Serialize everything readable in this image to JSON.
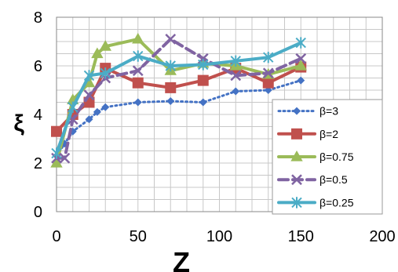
{
  "chart_data": {
    "type": "line",
    "title": "",
    "xlabel": "Z",
    "ylabel": "ξ",
    "xlim": [
      0,
      200
    ],
    "ylim": [
      0,
      8
    ],
    "x_ticks": [
      {
        "value": 0,
        "label": "0"
      },
      {
        "value": 50,
        "label": "50"
      },
      {
        "value": 100,
        "label": "100"
      },
      {
        "value": 150,
        "label": "150"
      },
      {
        "value": 200,
        "label": "200"
      }
    ],
    "y_ticks": [
      {
        "value": 0,
        "label": "0"
      },
      {
        "value": 2,
        "label": "2"
      },
      {
        "value": 4,
        "label": "4"
      },
      {
        "value": 6,
        "label": "6"
      },
      {
        "value": 8,
        "label": "8"
      }
    ],
    "grid": true,
    "legend_position": "bottom-right",
    "series": [
      {
        "name": "β=3",
        "color": "#4472c4",
        "style": "dotted",
        "marker": "diamond",
        "x": [
          0,
          5,
          10,
          20,
          25,
          30,
          50,
          70,
          90,
          110,
          130,
          150
        ],
        "y": [
          2.3,
          2.8,
          3.3,
          3.8,
          4.1,
          4.3,
          4.5,
          4.55,
          4.5,
          4.95,
          5.0,
          5.4
        ]
      },
      {
        "name": "β=2",
        "color": "#c0504d",
        "style": "solid",
        "marker": "square",
        "x": [
          0,
          10,
          20,
          30,
          50,
          70,
          90,
          110,
          130,
          150
        ],
        "y": [
          3.3,
          4.0,
          4.5,
          5.9,
          5.3,
          5.1,
          5.4,
          5.9,
          5.3,
          5.95
        ]
      },
      {
        "name": "β=0.75",
        "color": "#9bbb59",
        "style": "solid",
        "marker": "triangle",
        "x": [
          0,
          10,
          20,
          25,
          30,
          50,
          70,
          90,
          110,
          130,
          150
        ],
        "y": [
          2.0,
          4.6,
          5.3,
          6.5,
          6.8,
          7.1,
          5.8,
          6.1,
          6.0,
          5.65,
          6.0
        ]
      },
      {
        "name": "β=0.5",
        "color": "#8064a2",
        "style": "dashed",
        "marker": "x",
        "x": [
          0,
          5,
          10,
          20,
          30,
          50,
          70,
          90,
          110,
          130,
          150
        ],
        "y": [
          2.2,
          2.2,
          3.8,
          4.8,
          5.5,
          5.8,
          7.1,
          6.3,
          5.6,
          5.7,
          6.3
        ]
      },
      {
        "name": "β=0.25",
        "color": "#4bacc6",
        "style": "solid",
        "marker": "star",
        "x": [
          0,
          10,
          20,
          30,
          50,
          70,
          90,
          110,
          130,
          150
        ],
        "y": [
          2.4,
          4.3,
          5.6,
          5.7,
          6.4,
          6.0,
          6.05,
          6.2,
          6.35,
          6.95
        ]
      }
    ]
  }
}
